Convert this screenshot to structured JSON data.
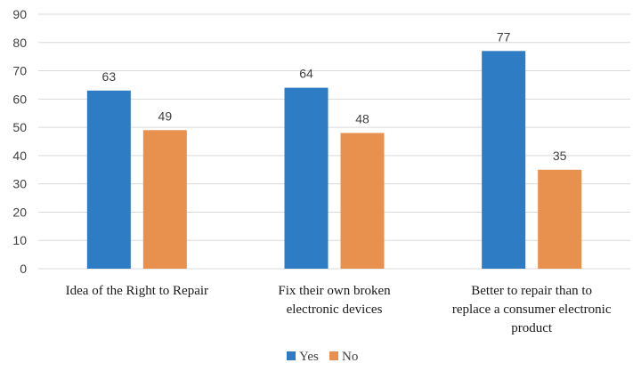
{
  "chart_data": {
    "type": "bar",
    "categories": [
      [
        "Idea of the Right to Repair"
      ],
      [
        "Fix their own broken",
        "electronic devices"
      ],
      [
        "Better to repair than to",
        "replace a consumer electronic",
        "product"
      ]
    ],
    "series": [
      {
        "name": "Yes",
        "values": [
          63,
          64,
          77
        ],
        "color": "#2e7dc4"
      },
      {
        "name": "No",
        "values": [
          49,
          48,
          35
        ],
        "color": "#e8914e"
      }
    ],
    "ylim": [
      0,
      90
    ],
    "yticks": [
      0,
      10,
      20,
      30,
      40,
      50,
      60,
      70,
      80,
      90
    ],
    "grid": true,
    "legend": "bottom-center",
    "data_labels": true
  }
}
